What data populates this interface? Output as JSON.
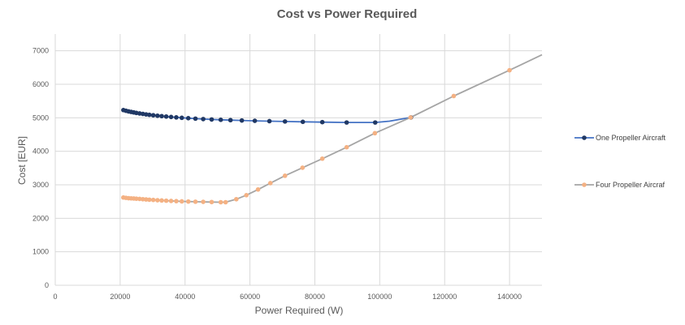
{
  "chart_data": {
    "type": "scatter",
    "title": "Cost vs Power Required",
    "xlabel": "Power Required (W)",
    "ylabel": "Cost [EUR]",
    "xlim": [
      0,
      150000
    ],
    "ylim": [
      0,
      7500
    ],
    "x_ticks": [
      0,
      20000,
      40000,
      60000,
      80000,
      100000,
      120000,
      140000
    ],
    "y_ticks": [
      0,
      1000,
      2000,
      3000,
      4000,
      5000,
      6000,
      7000
    ],
    "grid": true,
    "legend_position": "right",
    "series": [
      {
        "name": "One Propeller Aircraft",
        "color": "#203864",
        "line_color": "#4472C4",
        "points": [
          [
            21000,
            5230
          ],
          [
            21800,
            5210
          ],
          [
            22600,
            5190
          ],
          [
            23400,
            5175
          ],
          [
            24200,
            5160
          ],
          [
            25000,
            5145
          ],
          [
            26000,
            5130
          ],
          [
            27000,
            5115
          ],
          [
            28000,
            5100
          ],
          [
            29000,
            5088
          ],
          [
            30200,
            5075
          ],
          [
            31500,
            5062
          ],
          [
            32800,
            5050
          ],
          [
            34200,
            5038
          ],
          [
            35700,
            5025
          ],
          [
            37300,
            5012
          ],
          [
            39000,
            5000
          ],
          [
            41000,
            4988
          ],
          [
            43200,
            4975
          ],
          [
            45600,
            4962
          ],
          [
            48200,
            4950
          ],
          [
            51000,
            4940
          ],
          [
            54000,
            4930
          ],
          [
            57500,
            4920
          ],
          [
            61500,
            4910
          ],
          [
            66000,
            4900
          ],
          [
            70800,
            4890
          ],
          [
            76300,
            4880
          ],
          [
            82300,
            4870
          ],
          [
            89800,
            4860
          ],
          [
            98600,
            4860
          ],
          [
            109600,
            5010
          ]
        ],
        "curve_extra": [
          [
            103000,
            4900
          ]
        ]
      },
      {
        "name": "Four Propeller Aircraf",
        "color": "#F4B183",
        "line_color": "#A5A5A5",
        "points": [
          [
            21000,
            2620
          ],
          [
            21800,
            2610
          ],
          [
            22600,
            2600
          ],
          [
            23400,
            2595
          ],
          [
            24200,
            2590
          ],
          [
            25000,
            2585
          ],
          [
            26000,
            2578
          ],
          [
            27000,
            2570
          ],
          [
            28000,
            2562
          ],
          [
            29000,
            2555
          ],
          [
            30200,
            2548
          ],
          [
            31500,
            2540
          ],
          [
            32800,
            2532
          ],
          [
            34200,
            2525
          ],
          [
            35700,
            2518
          ],
          [
            37300,
            2512
          ],
          [
            39000,
            2505
          ],
          [
            41000,
            2500
          ],
          [
            43200,
            2495
          ],
          [
            45600,
            2490
          ],
          [
            48200,
            2485
          ],
          [
            51000,
            2480
          ],
          [
            52500,
            2480
          ],
          [
            55800,
            2570
          ],
          [
            58900,
            2690
          ],
          [
            62500,
            2860
          ],
          [
            66300,
            3050
          ],
          [
            70800,
            3270
          ],
          [
            76200,
            3510
          ],
          [
            82300,
            3780
          ],
          [
            89800,
            4120
          ],
          [
            98500,
            4540
          ],
          [
            109500,
            5010
          ],
          [
            122800,
            5650
          ],
          [
            140000,
            6420
          ]
        ],
        "curve_extra": [
          [
            150000,
            6880
          ]
        ]
      }
    ]
  }
}
